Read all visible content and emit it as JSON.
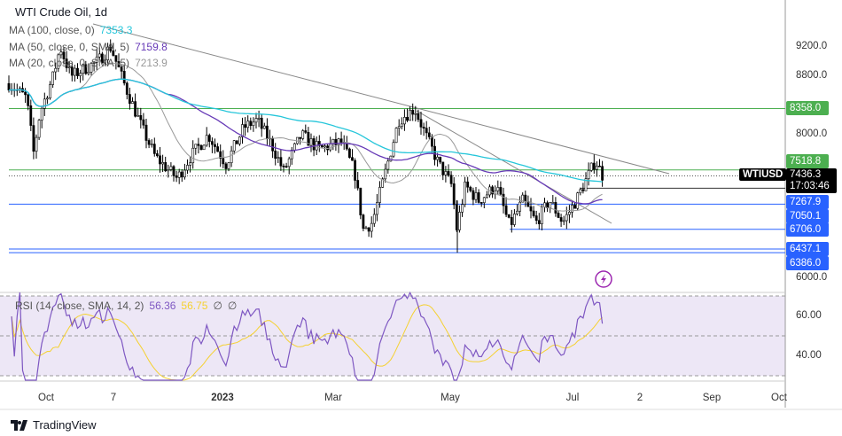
{
  "title": "WTI Crude Oil, 1d",
  "indicators": [
    {
      "label": "MA (100, close, 0)",
      "value": "7353.3",
      "color": "#26c6da"
    },
    {
      "label": "MA (50, close, 0, SMA, 5)",
      "value": "7159.8",
      "color": "#673ab7"
    },
    {
      "label": "MA (20, close, 0, SMA, 5)",
      "value": "7213.9",
      "color": "#999999"
    }
  ],
  "rsi": {
    "label": "RSI (14, close, SMA, 14, 2)",
    "value": "56.36",
    "value_color": "#7e57c2",
    "sma": "56.75",
    "sma_color": "#f5d130",
    "extra1": "∅",
    "extra2": "∅"
  },
  "price_axis": [
    "9200.0",
    "8800.0",
    "8000.0",
    "6000.0"
  ],
  "rsi_axis": [
    "60.00",
    "40.00"
  ],
  "price_levels": [
    {
      "value": "8358.0",
      "color": "#4caf50"
    },
    {
      "value": "7518.8",
      "color": "#4caf50"
    },
    {
      "value": "7267.9",
      "color": "#2962ff"
    },
    {
      "value": "7050.1",
      "color": "#2962ff"
    },
    {
      "value": "6706.0",
      "color": "#2962ff"
    },
    {
      "value": "6437.1",
      "color": "#2962ff"
    },
    {
      "value": "6386.0",
      "color": "#2962ff"
    }
  ],
  "symbol": "WTIUSD",
  "last_price": "7436.3",
  "countdown": "17:03:46",
  "time_axis": [
    "Oct",
    "7",
    "2023",
    "Mar",
    "May",
    "Jul",
    "2",
    "Sep",
    "Oct"
  ],
  "footer": {
    "brand": "TradingView"
  },
  "icons": {
    "flash": "lightning-icon"
  },
  "colors": {
    "up": "#000000",
    "down": "#000000",
    "ma100": "#26c6da",
    "ma50": "#673ab7",
    "ma20": "#999999",
    "rsi": "#7e57c2",
    "rsi_sma": "#f5d130"
  }
}
